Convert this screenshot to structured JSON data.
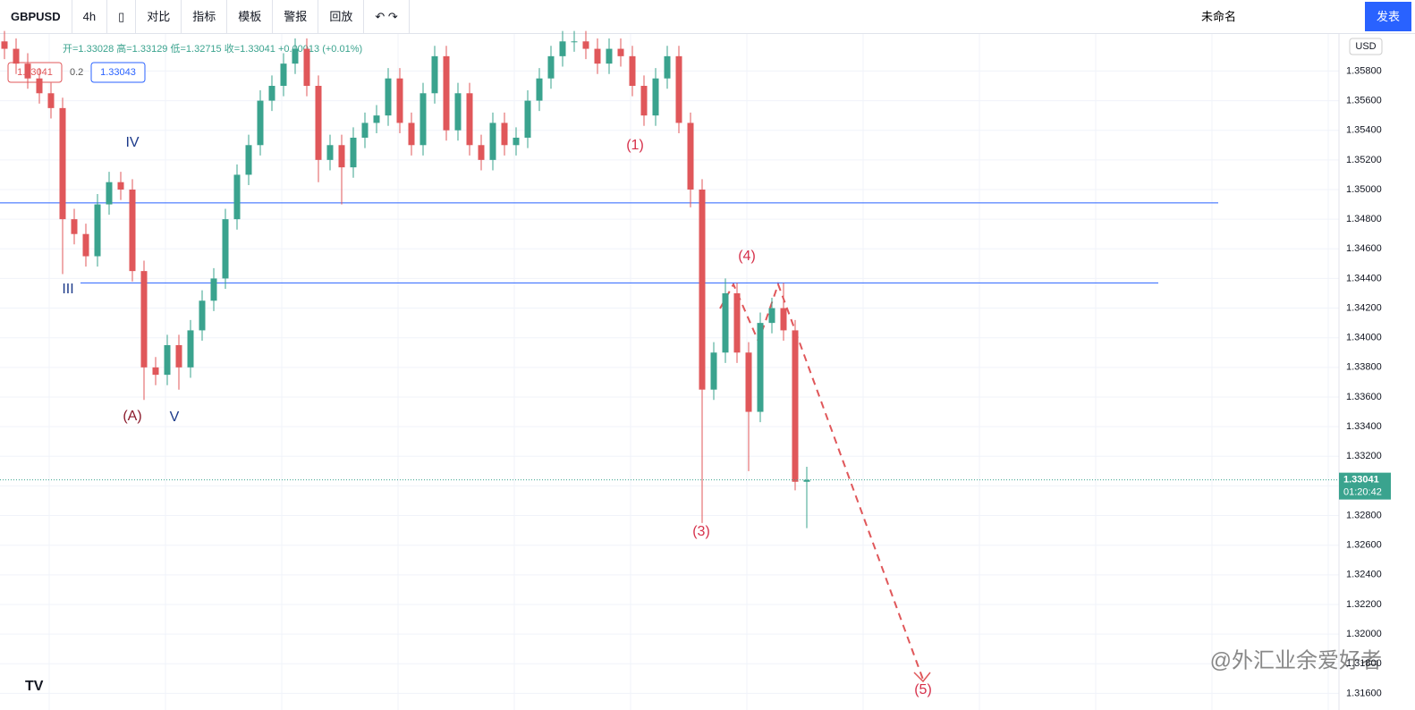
{
  "toolbar": {
    "symbol": "GBPUSD",
    "interval": "4h",
    "items": [
      "对比",
      "指标",
      "模板",
      "警报",
      "回放"
    ],
    "layout_name": "未命名",
    "publish": "发表"
  },
  "legend": {
    "ohlc": "开=1.33028 高=1.33129 低=1.32715 收=1.33041 +0.00013 (+0.01%)",
    "bid": "1.33041",
    "spread": "0.2",
    "ask": "1.33043"
  },
  "axis_currency": "USD",
  "price_badge": "1.33041",
  "countdown": "01:20:42",
  "watermark": "@外汇业余爱好者",
  "chart_data": {
    "type": "candlestick",
    "colors": {
      "up": "#3aa38e",
      "down": "#e0575a"
    },
    "open": [
      1.36,
      1.3595,
      1.3585,
      1.3575,
      1.3565,
      1.3555,
      1.348,
      1.347,
      1.3455,
      1.349,
      1.3505,
      1.35,
      1.3445,
      1.338,
      1.3375,
      1.3395,
      1.338,
      1.3405,
      1.3425,
      1.344,
      1.348,
      1.351,
      1.353,
      1.356,
      1.357,
      1.3585,
      1.3595,
      1.357,
      1.352,
      1.353,
      1.3515,
      1.3535,
      1.3545,
      1.355,
      1.3575,
      1.3545,
      1.353,
      1.3565,
      1.359,
      1.354,
      1.3565,
      1.353,
      1.352,
      1.3545,
      1.353,
      1.3535,
      1.356,
      1.3575,
      1.359,
      1.36,
      1.36,
      1.3595,
      1.3585,
      1.3595,
      1.359,
      1.357,
      1.355,
      1.3575,
      1.359,
      1.3545,
      1.35,
      1.3365,
      1.339,
      1.343,
      1.339,
      1.335,
      1.341,
      1.342,
      1.3405,
      1.33028
    ],
    "high": [
      1.3607,
      1.3602,
      1.3592,
      1.3582,
      1.3572,
      1.3562,
      1.3487,
      1.3477,
      1.3497,
      1.3512,
      1.3512,
      1.3507,
      1.3452,
      1.3387,
      1.3402,
      1.3402,
      1.3412,
      1.3432,
      1.3447,
      1.3487,
      1.3517,
      1.3537,
      1.3567,
      1.3577,
      1.3592,
      1.3602,
      1.3602,
      1.3577,
      1.3537,
      1.3537,
      1.3542,
      1.3552,
      1.3557,
      1.3582,
      1.3582,
      1.3552,
      1.3572,
      1.3597,
      1.3597,
      1.3572,
      1.3572,
      1.3537,
      1.3552,
      1.3552,
      1.3542,
      1.3567,
      1.3582,
      1.3597,
      1.3607,
      1.3607,
      1.3607,
      1.3602,
      1.3602,
      1.3602,
      1.3597,
      1.3577,
      1.3582,
      1.3597,
      1.3597,
      1.3552,
      1.3507,
      1.3397,
      1.344,
      1.3437,
      1.3397,
      1.3417,
      1.3427,
      1.3437,
      1.3412,
      1.33129
    ],
    "low": [
      1.3588,
      1.3578,
      1.3568,
      1.3558,
      1.3548,
      1.3443,
      1.3463,
      1.3448,
      1.3448,
      1.3483,
      1.3493,
      1.3438,
      1.3358,
      1.3368,
      1.3368,
      1.3365,
      1.3373,
      1.3398,
      1.3418,
      1.3433,
      1.3473,
      1.3503,
      1.3523,
      1.3553,
      1.3563,
      1.3578,
      1.3563,
      1.3505,
      1.3513,
      1.349,
      1.3508,
      1.3528,
      1.3538,
      1.3543,
      1.3538,
      1.3523,
      1.3523,
      1.3558,
      1.3533,
      1.3533,
      1.3523,
      1.3513,
      1.3513,
      1.3523,
      1.3523,
      1.3528,
      1.3553,
      1.3568,
      1.3583,
      1.3593,
      1.3588,
      1.3578,
      1.3578,
      1.3583,
      1.3563,
      1.3543,
      1.3543,
      1.3568,
      1.3538,
      1.3488,
      1.3275,
      1.3358,
      1.3383,
      1.3383,
      1.331,
      1.3343,
      1.3403,
      1.3398,
      1.3297,
      1.32715
    ],
    "close": [
      1.3595,
      1.3585,
      1.3575,
      1.3565,
      1.3555,
      1.348,
      1.347,
      1.3455,
      1.349,
      1.3505,
      1.35,
      1.3445,
      1.338,
      1.3375,
      1.3395,
      1.338,
      1.3405,
      1.3425,
      1.344,
      1.348,
      1.351,
      1.353,
      1.356,
      1.357,
      1.3585,
      1.3595,
      1.357,
      1.352,
      1.353,
      1.3515,
      1.3535,
      1.3545,
      1.355,
      1.3575,
      1.3545,
      1.353,
      1.3565,
      1.359,
      1.354,
      1.3565,
      1.353,
      1.352,
      1.3545,
      1.353,
      1.3535,
      1.356,
      1.3575,
      1.359,
      1.36,
      1.36,
      1.3595,
      1.3585,
      1.3595,
      1.359,
      1.357,
      1.355,
      1.3575,
      1.359,
      1.3545,
      1.35,
      1.3365,
      1.339,
      1.343,
      1.339,
      1.335,
      1.341,
      1.342,
      1.3405,
      1.33028,
      1.33041
    ],
    "ylim": [
      1.3153,
      1.3605
    ],
    "yticks": [
      {
        "value": 1.316,
        "label": "1.31600"
      },
      {
        "value": 1.318,
        "label": "1.31800"
      },
      {
        "value": 1.32,
        "label": "1.32000"
      },
      {
        "value": 1.322,
        "label": "1.32200"
      },
      {
        "value": 1.324,
        "label": "1.32400"
      },
      {
        "value": 1.326,
        "label": "1.32600"
      },
      {
        "value": 1.328,
        "label": "1.32800"
      },
      {
        "value": 1.33,
        "label": "1.33000"
      },
      {
        "value": 1.332,
        "label": "1.33200"
      },
      {
        "value": 1.334,
        "label": "1.33400"
      },
      {
        "value": 1.336,
        "label": "1.33600"
      },
      {
        "value": 1.338,
        "label": "1.33800"
      },
      {
        "value": 1.34,
        "label": "1.34000"
      },
      {
        "value": 1.342,
        "label": "1.34200"
      },
      {
        "value": 1.344,
        "label": "1.34400"
      },
      {
        "value": 1.346,
        "label": "1.34600"
      },
      {
        "value": 1.348,
        "label": "1.34800"
      },
      {
        "value": 1.35,
        "label": "1.35000"
      },
      {
        "value": 1.352,
        "label": "1.35200"
      },
      {
        "value": 1.354,
        "label": "1.35400"
      },
      {
        "value": 1.356,
        "label": "1.35600"
      },
      {
        "value": 1.358,
        "label": "1.35800"
      }
    ],
    "hlines": [
      1.3491,
      1.3437
    ],
    "last_price": 1.33041,
    "wave_labels": [
      "IV",
      "III",
      "V",
      "(A)",
      "(1)",
      "(3)",
      "(4)",
      "(5)"
    ]
  }
}
